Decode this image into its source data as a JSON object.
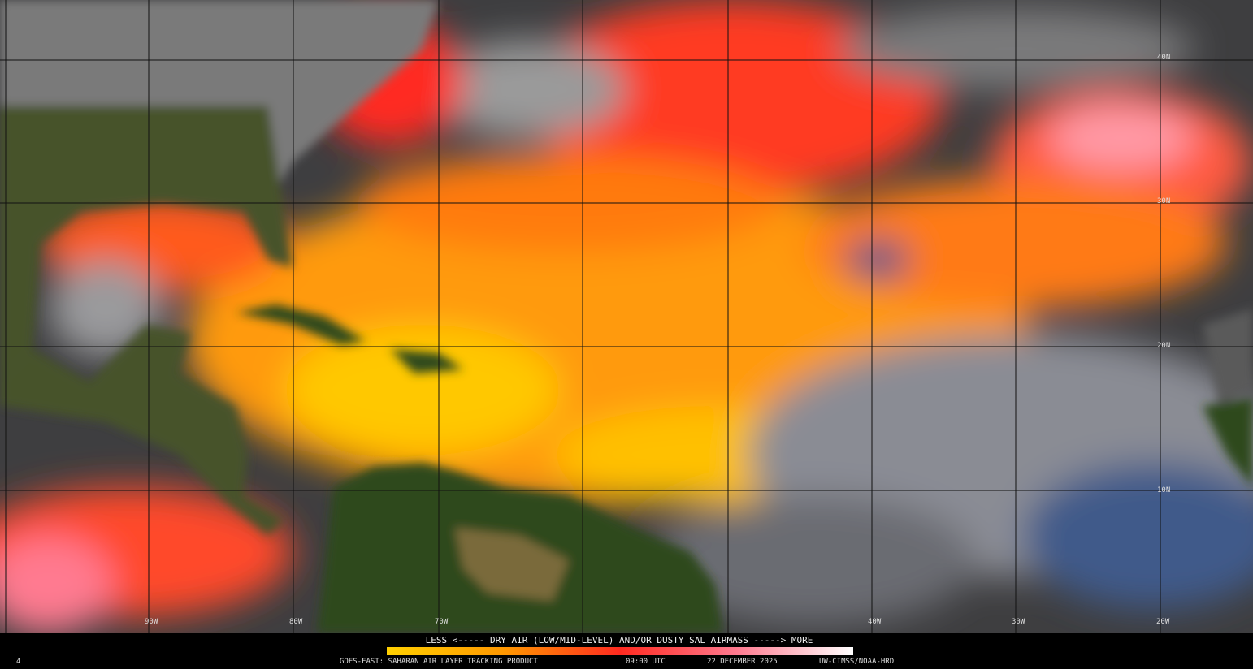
{
  "map": {
    "lat_labels": [
      "40N",
      "30N",
      "20N",
      "10N"
    ],
    "lon_labels": [
      "90W",
      "80W",
      "70W",
      "40W",
      "30W",
      "20W"
    ]
  },
  "legend": {
    "text": "LESS <----- DRY AIR (LOW/MID-LEVEL) AND/OR DUSTY SAL AIRMASS -----> MORE"
  },
  "footer": {
    "corner": "4",
    "product": "GOES-EAST: SAHARAN AIR LAYER TRACKING PRODUCT",
    "time": "09:00 UTC",
    "date": "22 DECEMBER 2025",
    "credit": "UW-CIMSS/NOAA-HRD"
  }
}
